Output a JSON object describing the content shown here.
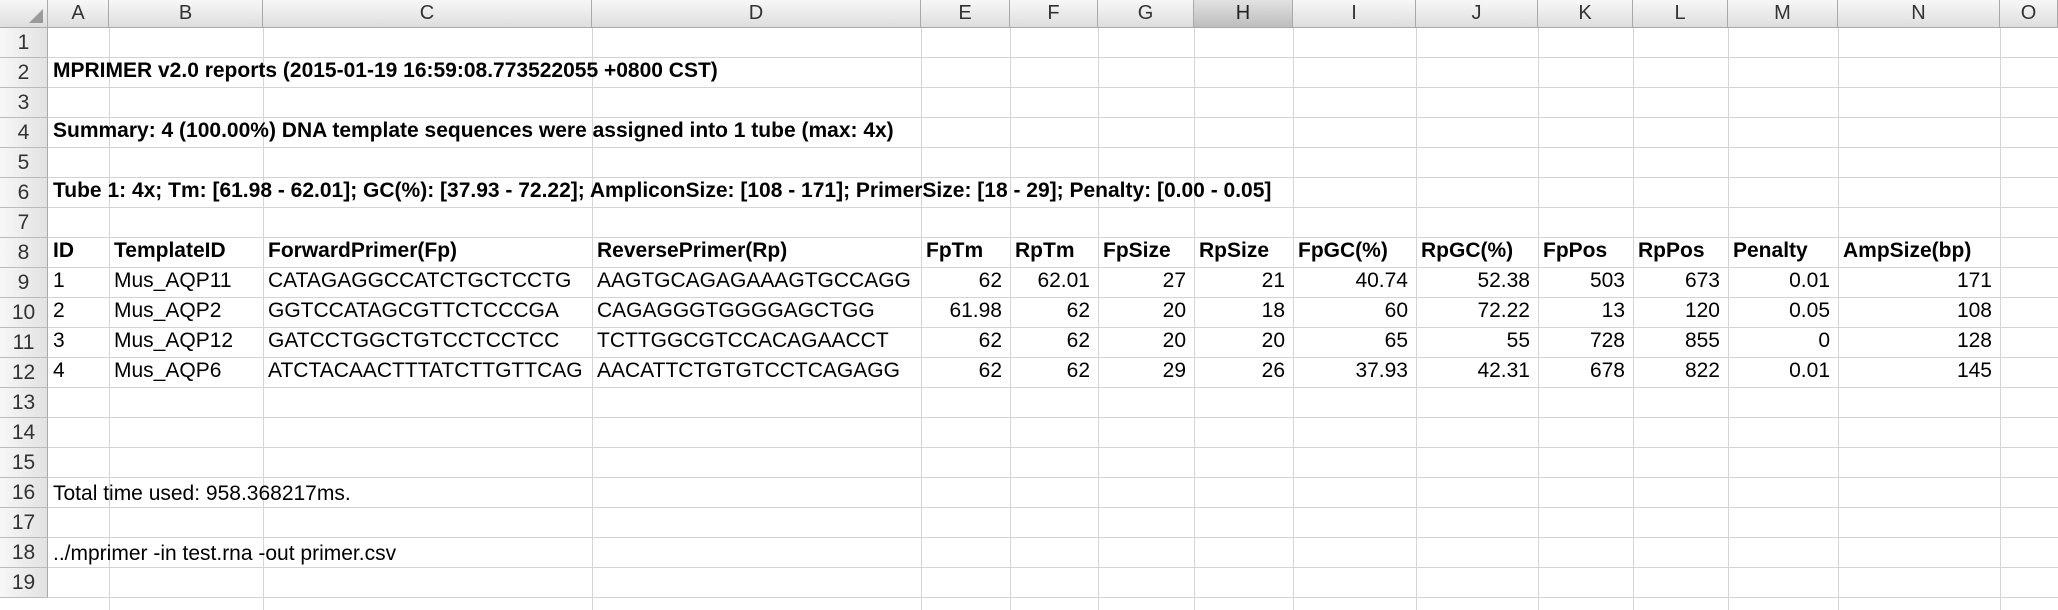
{
  "columns": [
    "A",
    "B",
    "C",
    "D",
    "E",
    "F",
    "G",
    "H",
    "I",
    "J",
    "K",
    "L",
    "M",
    "N",
    "O"
  ],
  "selected_column": "H",
  "rows": [
    "1",
    "2",
    "3",
    "4",
    "5",
    "6",
    "7",
    "8",
    "9",
    "10",
    "11",
    "12",
    "13",
    "14",
    "15",
    "16",
    "17",
    "18",
    "19"
  ],
  "report": {
    "title": "MPRIMER v2.0 reports (2015-01-19 16:59:08.773522055 +0800 CST)",
    "summary": "Summary: 4 (100.00%) DNA template sequences were assigned into 1 tube (max: 4x)",
    "tube": "Tube 1: 4x; Tm: [61.98 - 62.01]; GC(%): [37.93 - 72.22]; AmpliconSize: [108 - 171]; PrimerSize: [18 - 29]; Penalty: [0.00 - 0.05]",
    "total_time": "Total time used: 958.368217ms.",
    "command": "../mprimer -in test.rna -out primer.csv"
  },
  "table": {
    "headers": [
      "ID",
      "TemplateID",
      "ForwardPrimer(Fp)",
      "ReversePrimer(Rp)",
      "FpTm",
      "RpTm",
      "FpSize",
      "RpSize",
      "FpGC(%)",
      "RpGC(%)",
      "FpPos",
      "RpPos",
      "Penalty",
      "AmpSize(bp)"
    ],
    "rows": [
      [
        "1",
        "Mus_AQP11",
        "CATAGAGGCCATCTGCTCCTG",
        "AAGTGCAGAGAAAGTGCCAGG",
        "62",
        "62.01",
        "27",
        "21",
        "40.74",
        "52.38",
        "503",
        "673",
        "0.01",
        "171"
      ],
      [
        "2",
        "Mus_AQP2",
        "GGTCCATAGCGTTCTCCCGA",
        "CAGAGGGTGGGGAGCTGG",
        "61.98",
        "62",
        "20",
        "18",
        "60",
        "72.22",
        "13",
        "120",
        "0.05",
        "108"
      ],
      [
        "3",
        "Mus_AQP12",
        "GATCCTGGCTGTCCTCCTCC",
        "TCTTGGCGTCCACAGAACCT",
        "62",
        "62",
        "20",
        "20",
        "65",
        "55",
        "728",
        "855",
        "0",
        "128"
      ],
      [
        "4",
        "Mus_AQP6",
        "ATCTACAACTTTATCTTGTTCAG",
        "AACATTCTGTGTCCTCAGAGG",
        "62",
        "62",
        "29",
        "26",
        "37.93",
        "42.31",
        "678",
        "822",
        "0.01",
        "145"
      ]
    ]
  }
}
